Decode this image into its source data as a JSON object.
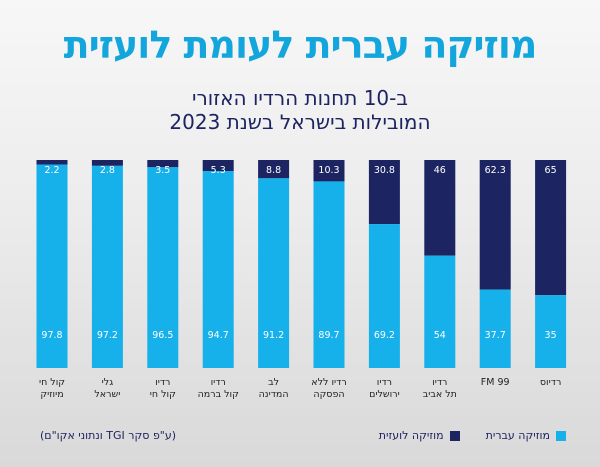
{
  "header": {
    "title": "מוזיקה עברית לעומת לועזית",
    "subtitle_line1": "ב-10 תחנות הרדיו האזורי",
    "subtitle_line2": "המובילות בישראל בשנת 2023"
  },
  "legend": {
    "hebrew_label": "מוזיקה עברית",
    "foreign_label": "מוזיקה לועזית"
  },
  "source_note": "(ע\"פ סקר TGI ונתוני אקו\"ם)",
  "colors": {
    "hebrew": "#16b0ea",
    "foreign": "#1c2461",
    "title": "#12a6dc"
  },
  "chart_data": {
    "type": "bar",
    "stacked": true,
    "normalized": true,
    "ylim": [
      0,
      100
    ],
    "categories": [
      [
        "קול חי",
        "מיוזיק"
      ],
      [
        "גלי",
        "ישראל"
      ],
      [
        "רדיו",
        "קול חי"
      ],
      [
        "רדיו",
        "קול ברמה"
      ],
      [
        "לב",
        "המדינה"
      ],
      [
        "רדיו ללא",
        "הפסקה"
      ],
      [
        "רדיו",
        "ירושלים"
      ],
      [
        "רדיו",
        "תל אביב"
      ],
      [
        "99 FM"
      ],
      [
        "רדיוס"
      ]
    ],
    "series": [
      {
        "name": "מוזיקה עברית",
        "values": [
          97.8,
          97.2,
          96.5,
          94.7,
          91.2,
          89.7,
          69.2,
          54,
          37.7,
          35
        ]
      },
      {
        "name": "מוזיקה לועזית",
        "values": [
          2.2,
          2.8,
          3.5,
          5.3,
          8.8,
          10.3,
          30.8,
          46,
          62.3,
          65
        ]
      }
    ]
  }
}
